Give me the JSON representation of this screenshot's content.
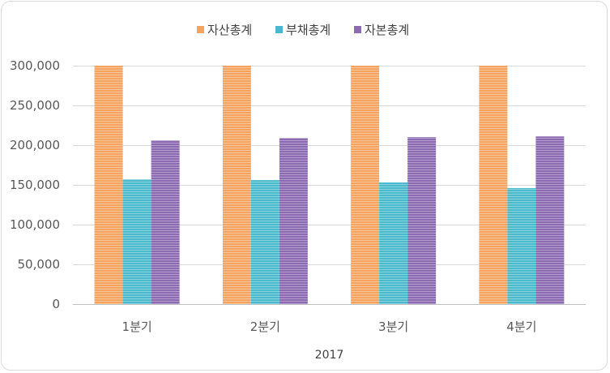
{
  "chart_data": {
    "type": "bar",
    "title": "",
    "xlabel": "",
    "ylabel": "",
    "x_group_label": "2017",
    "categories": [
      "1분기",
      "2분기",
      "3분기",
      "4분기"
    ],
    "series": [
      {
        "name": "자산총계",
        "color": "#F4A460",
        "stroke": "#F7B37C",
        "values": [
          300000,
          300000,
          300000,
          300000
        ]
      },
      {
        "name": "부채총계",
        "color": "#4BB8CC",
        "stroke": "#7ED0DE",
        "values": [
          157000,
          156000,
          153000,
          146000
        ]
      },
      {
        "name": "자본총계",
        "color": "#8C6BB1",
        "stroke": "#A98CC8",
        "values": [
          206000,
          209000,
          210000,
          211000
        ]
      }
    ],
    "ylim": [
      0,
      300000
    ],
    "yticks": [
      0,
      50000,
      100000,
      150000,
      200000,
      250000,
      300000
    ],
    "ytick_labels": [
      "0",
      "50,000",
      "100,000",
      "150,000",
      "200,000",
      "250,000",
      "300,000"
    ],
    "grid": true,
    "legend_position": "top"
  }
}
